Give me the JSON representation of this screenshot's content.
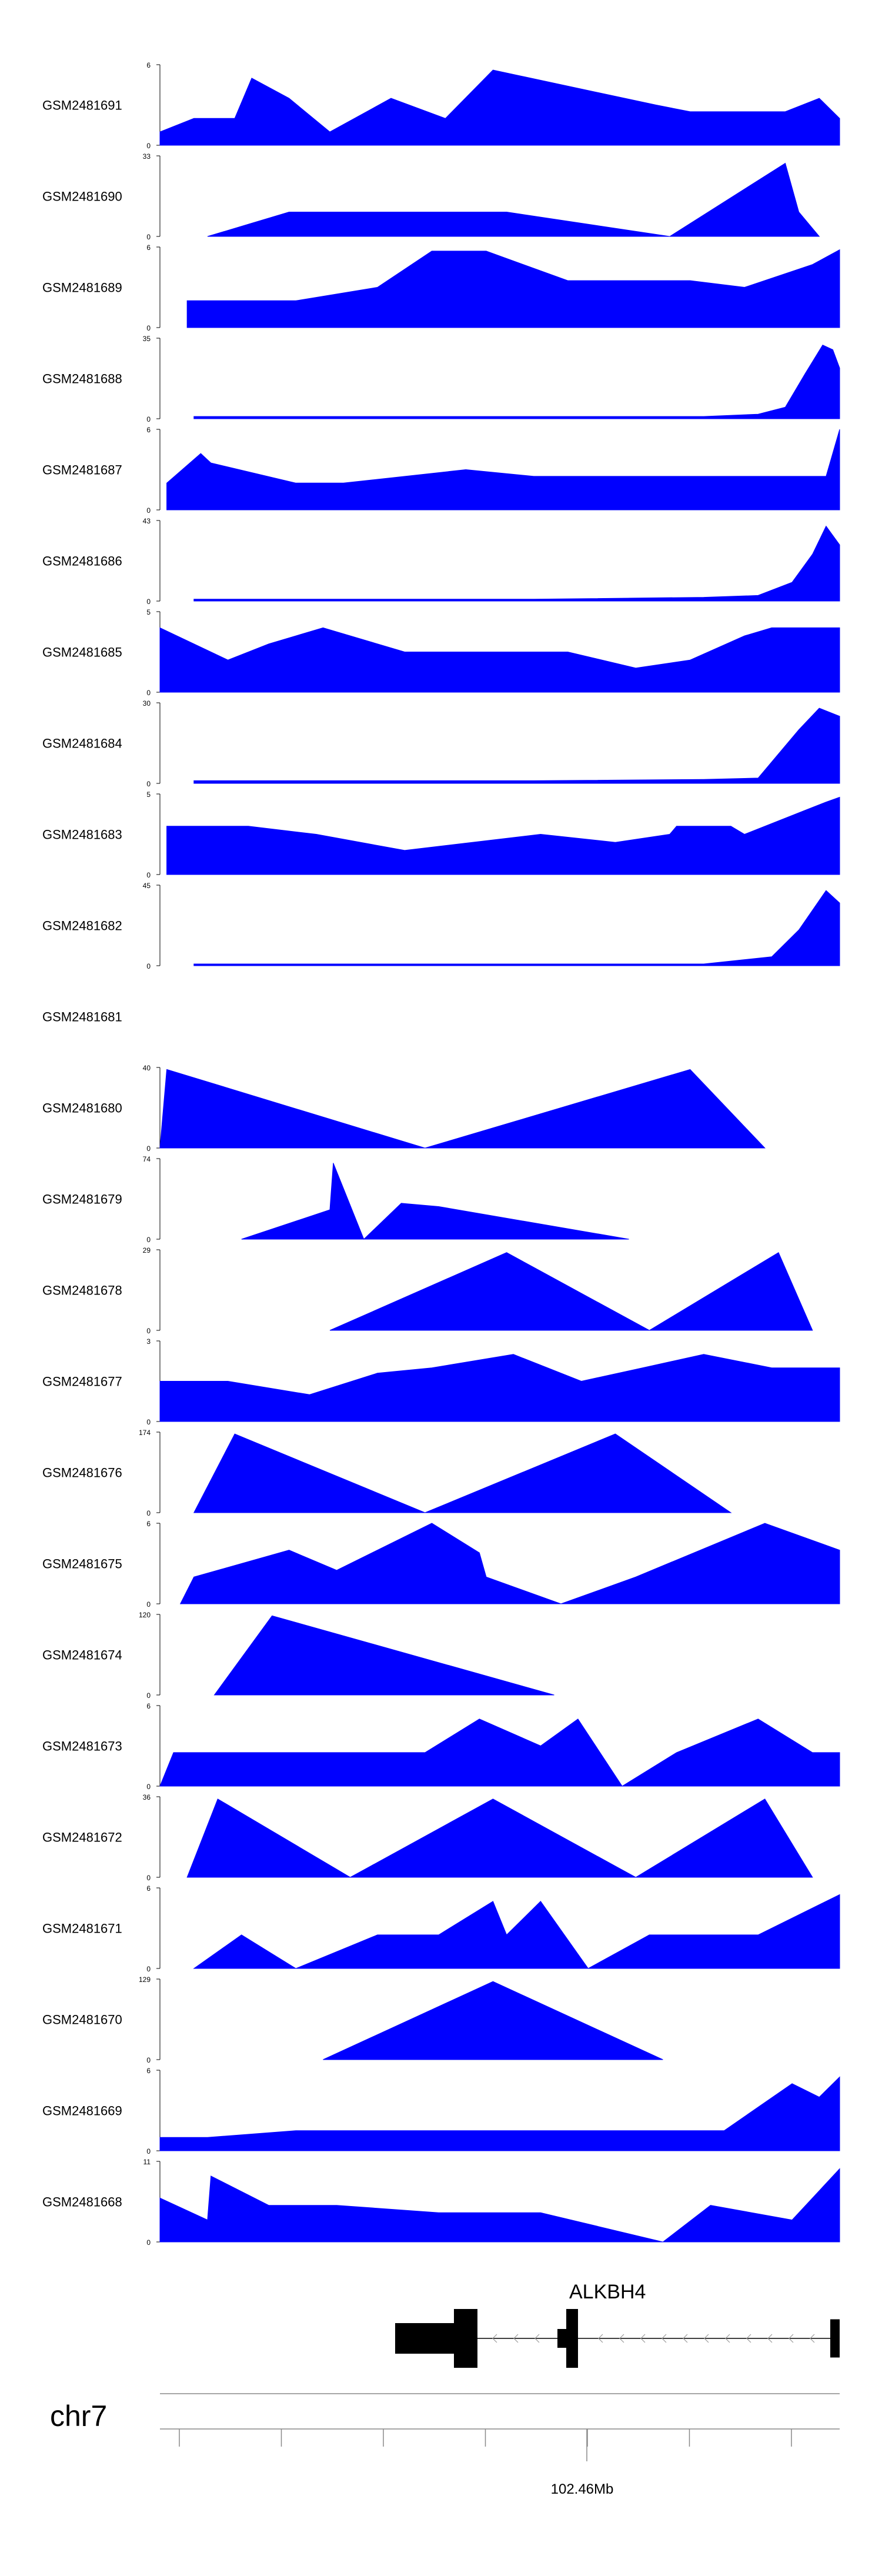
{
  "chart_data": {
    "type": "area",
    "fill_color": "#0000ff",
    "chromosome": "chr7",
    "gene": {
      "name": "ALKBH4",
      "strand": "-"
    },
    "axis": {
      "tick_label": "102.46Mb",
      "tick_count": 7
    },
    "tracks": [
      {
        "name": "GSM2481691",
        "ymax": "6",
        "peaks": [
          [
            0.0,
            1
          ],
          [
            0.05,
            2
          ],
          [
            0.11,
            2
          ],
          [
            0.135,
            5
          ],
          [
            0.19,
            3.5
          ],
          [
            0.25,
            1
          ],
          [
            0.34,
            3.5
          ],
          [
            0.42,
            2
          ],
          [
            0.49,
            5.6
          ],
          [
            0.73,
            3
          ],
          [
            0.78,
            2.5
          ],
          [
            0.84,
            2.5
          ],
          [
            0.92,
            2.5
          ],
          [
            0.97,
            3.5
          ],
          [
            1.0,
            2
          ]
        ]
      },
      {
        "name": "GSM2481690",
        "ymax": "33",
        "peaks": [
          [
            0.07,
            0
          ],
          [
            0.19,
            10
          ],
          [
            0.21,
            10
          ],
          [
            0.37,
            10
          ],
          [
            0.51,
            10
          ],
          [
            0.75,
            0
          ],
          [
            0.92,
            30
          ],
          [
            0.94,
            10
          ],
          [
            0.97,
            0
          ]
        ]
      },
      {
        "name": "GSM2481689",
        "ymax": "6",
        "peaks": [
          [
            0.04,
            2
          ],
          [
            0.1,
            2
          ],
          [
            0.2,
            2
          ],
          [
            0.32,
            3
          ],
          [
            0.4,
            5.7
          ],
          [
            0.48,
            5.7
          ],
          [
            0.6,
            3.5
          ],
          [
            0.78,
            3.5
          ],
          [
            0.86,
            3
          ],
          [
            0.96,
            4.7
          ],
          [
            1.0,
            5.8
          ]
        ]
      },
      {
        "name": "GSM2481688",
        "ymax": "35",
        "peaks": [
          [
            0.05,
            1
          ],
          [
            0.3,
            1
          ],
          [
            0.55,
            1
          ],
          [
            0.8,
            1
          ],
          [
            0.88,
            2
          ],
          [
            0.92,
            5
          ],
          [
            0.95,
            20
          ],
          [
            0.975,
            32
          ],
          [
            0.99,
            30
          ],
          [
            1.0,
            22
          ]
        ]
      },
      {
        "name": "GSM2481687",
        "ymax": "6",
        "peaks": [
          [
            0.01,
            2
          ],
          [
            0.06,
            4.2
          ],
          [
            0.075,
            3.5
          ],
          [
            0.2,
            2
          ],
          [
            0.27,
            2
          ],
          [
            0.45,
            3
          ],
          [
            0.55,
            2.5
          ],
          [
            0.71,
            2.5
          ],
          [
            0.98,
            2.5
          ],
          [
            1.0,
            6
          ]
        ]
      },
      {
        "name": "GSM2481686",
        "ymax": "43",
        "peaks": [
          [
            0.05,
            1
          ],
          [
            0.3,
            1
          ],
          [
            0.55,
            1
          ],
          [
            0.8,
            2
          ],
          [
            0.88,
            3
          ],
          [
            0.93,
            10
          ],
          [
            0.96,
            25
          ],
          [
            0.98,
            40
          ],
          [
            1.0,
            30
          ]
        ]
      },
      {
        "name": "GSM2481685",
        "ymax": "5",
        "peaks": [
          [
            0.0,
            4
          ],
          [
            0.1,
            2
          ],
          [
            0.16,
            3
          ],
          [
            0.24,
            4
          ],
          [
            0.36,
            2.5
          ],
          [
            0.44,
            2.5
          ],
          [
            0.6,
            2.5
          ],
          [
            0.7,
            1.5
          ],
          [
            0.78,
            2
          ],
          [
            0.86,
            3.5
          ],
          [
            0.9,
            4
          ],
          [
            1.0,
            4
          ]
        ]
      },
      {
        "name": "GSM2481684",
        "ymax": "30",
        "peaks": [
          [
            0.05,
            1
          ],
          [
            0.3,
            1
          ],
          [
            0.55,
            1
          ],
          [
            0.8,
            1.5
          ],
          [
            0.88,
            2
          ],
          [
            0.94,
            20
          ],
          [
            0.97,
            28
          ],
          [
            1.0,
            25
          ]
        ]
      },
      {
        "name": "GSM2481683",
        "ymax": "5",
        "peaks": [
          [
            0.01,
            3
          ],
          [
            0.13,
            3
          ],
          [
            0.23,
            2.5
          ],
          [
            0.36,
            1.5
          ],
          [
            0.56,
            2.5
          ],
          [
            0.67,
            2
          ],
          [
            0.75,
            2.5
          ],
          [
            0.76,
            3
          ],
          [
            0.84,
            3
          ],
          [
            0.86,
            2.5
          ],
          [
            0.95,
            4
          ],
          [
            0.98,
            4.5
          ],
          [
            1.0,
            4.8
          ]
        ]
      },
      {
        "name": "GSM2481682",
        "ymax": "45",
        "peaks": [
          [
            0.05,
            1
          ],
          [
            0.3,
            1
          ],
          [
            0.55,
            1
          ],
          [
            0.8,
            1
          ],
          [
            0.9,
            5
          ],
          [
            0.94,
            20
          ],
          [
            0.98,
            42
          ],
          [
            1.0,
            35
          ]
        ]
      },
      {
        "name": "GSM2481681",
        "ymax": "",
        "peaks": []
      },
      {
        "name": "GSM2481680",
        "ymax": "40",
        "peaks": [
          [
            0.0,
            0
          ],
          [
            0.01,
            39
          ],
          [
            0.39,
            0
          ],
          [
            0.78,
            39
          ],
          [
            0.89,
            0
          ]
        ]
      },
      {
        "name": "GSM2481679",
        "ymax": "74",
        "peaks": [
          [
            0.12,
            0
          ],
          [
            0.25,
            27
          ],
          [
            0.255,
            70
          ],
          [
            0.3,
            0
          ],
          [
            0.355,
            33
          ],
          [
            0.41,
            30
          ],
          [
            0.69,
            0
          ]
        ]
      },
      {
        "name": "GSM2481678",
        "ymax": "29",
        "peaks": [
          [
            0.25,
            0
          ],
          [
            0.51,
            28
          ],
          [
            0.72,
            0
          ],
          [
            0.91,
            28
          ],
          [
            0.96,
            0
          ]
        ]
      },
      {
        "name": "GSM2481677",
        "ymax": "3",
        "peaks": [
          [
            0.0,
            1.5
          ],
          [
            0.1,
            1.5
          ],
          [
            0.22,
            1
          ],
          [
            0.32,
            1.8
          ],
          [
            0.4,
            2
          ],
          [
            0.52,
            2.5
          ],
          [
            0.62,
            1.5
          ],
          [
            0.71,
            2
          ],
          [
            0.8,
            2.5
          ],
          [
            0.9,
            2
          ],
          [
            1.0,
            2
          ]
        ]
      },
      {
        "name": "GSM2481676",
        "ymax": "174",
        "peaks": [
          [
            0.05,
            0
          ],
          [
            0.11,
            170
          ],
          [
            0.39,
            0
          ],
          [
            0.67,
            170
          ],
          [
            0.84,
            0
          ]
        ]
      },
      {
        "name": "GSM2481675",
        "ymax": "6",
        "peaks": [
          [
            0.03,
            0
          ],
          [
            0.05,
            2
          ],
          [
            0.19,
            4
          ],
          [
            0.26,
            2.5
          ],
          [
            0.4,
            6
          ],
          [
            0.47,
            3.8
          ],
          [
            0.48,
            2
          ],
          [
            0.59,
            0
          ],
          [
            0.7,
            2
          ],
          [
            0.89,
            6
          ],
          [
            1.0,
            4
          ]
        ]
      },
      {
        "name": "GSM2481674",
        "ymax": "120",
        "peaks": [
          [
            0.08,
            0
          ],
          [
            0.165,
            118
          ],
          [
            0.58,
            0
          ]
        ]
      },
      {
        "name": "GSM2481673",
        "ymax": "6",
        "peaks": [
          [
            0.0,
            0
          ],
          [
            0.02,
            2.5
          ],
          [
            0.15,
            2.5
          ],
          [
            0.22,
            2.5
          ],
          [
            0.39,
            2.5
          ],
          [
            0.47,
            5
          ],
          [
            0.56,
            3
          ],
          [
            0.615,
            5
          ],
          [
            0.68,
            0
          ],
          [
            0.76,
            2.5
          ],
          [
            0.88,
            5
          ],
          [
            0.96,
            2.5
          ],
          [
            1.0,
            2.5
          ]
        ]
      },
      {
        "name": "GSM2481672",
        "ymax": "36",
        "peaks": [
          [
            0.04,
            0
          ],
          [
            0.085,
            35
          ],
          [
            0.28,
            0
          ],
          [
            0.49,
            35
          ],
          [
            0.7,
            0
          ],
          [
            0.89,
            35
          ],
          [
            0.96,
            0
          ]
        ]
      },
      {
        "name": "GSM2481671",
        "ymax": "6",
        "peaks": [
          [
            0.05,
            0
          ],
          [
            0.12,
            2.5
          ],
          [
            0.2,
            0
          ],
          [
            0.32,
            2.5
          ],
          [
            0.41,
            2.5
          ],
          [
            0.49,
            5
          ],
          [
            0.51,
            2.5
          ],
          [
            0.56,
            5
          ],
          [
            0.63,
            0
          ],
          [
            0.72,
            2.5
          ],
          [
            0.88,
            2.5
          ],
          [
            1.0,
            5.5
          ]
        ]
      },
      {
        "name": "GSM2481670",
        "ymax": "129",
        "peaks": [
          [
            0.24,
            0
          ],
          [
            0.49,
            125
          ],
          [
            0.74,
            0
          ]
        ]
      },
      {
        "name": "GSM2481669",
        "ymax": "6",
        "peaks": [
          [
            0.0,
            1
          ],
          [
            0.07,
            1
          ],
          [
            0.2,
            1.5
          ],
          [
            0.33,
            1.5
          ],
          [
            0.45,
            1.5
          ],
          [
            0.57,
            1.5
          ],
          [
            0.7,
            1.5
          ],
          [
            0.83,
            1.5
          ],
          [
            0.93,
            5
          ],
          [
            0.97,
            4
          ],
          [
            1.0,
            5.5
          ]
        ]
      },
      {
        "name": "GSM2481668",
        "ymax": "11",
        "peaks": [
          [
            0.0,
            6
          ],
          [
            0.07,
            3
          ],
          [
            0.075,
            9
          ],
          [
            0.16,
            5
          ],
          [
            0.26,
            5
          ],
          [
            0.41,
            4
          ],
          [
            0.56,
            4
          ],
          [
            0.74,
            0
          ],
          [
            0.81,
            5
          ],
          [
            0.93,
            3
          ],
          [
            1.0,
            10
          ]
        ]
      }
    ]
  }
}
